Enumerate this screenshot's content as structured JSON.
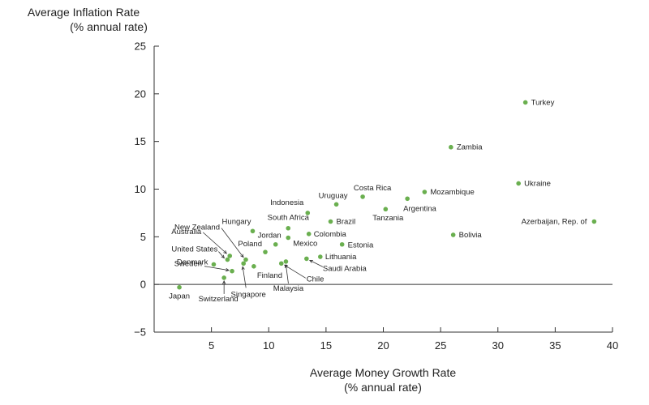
{
  "chart_data": {
    "type": "scatter",
    "title": "",
    "ylabel_line1": "Average Inflation Rate",
    "ylabel_line2": "(% annual rate)",
    "xlabel_line1": "Average Money Growth Rate",
    "xlabel_line2": "(% annual rate)",
    "xlim": [
      0,
      40
    ],
    "ylim": [
      -5,
      25
    ],
    "xticks": [
      5,
      10,
      15,
      20,
      25,
      30,
      35,
      40
    ],
    "yticks": [
      25,
      20,
      15,
      10,
      5,
      0,
      -5
    ],
    "points": [
      {
        "label": "Japan",
        "x": 2.2,
        "y": -0.3
      },
      {
        "label": "Switzerland",
        "x": 6.1,
        "y": 0.7
      },
      {
        "label": "Sweden",
        "x": 6.8,
        "y": 1.4
      },
      {
        "label": "Denmark",
        "x": 5.2,
        "y": 2.1
      },
      {
        "label": "United States",
        "x": 6.4,
        "y": 2.6
      },
      {
        "label": "Australia",
        "x": 6.6,
        "y": 3.0
      },
      {
        "label": "New Zealand",
        "x": 8.0,
        "y": 2.6
      },
      {
        "label": "Singapore",
        "x": 7.8,
        "y": 2.2
      },
      {
        "label": "Finland",
        "x": 8.7,
        "y": 1.9
      },
      {
        "label": "Poland",
        "x": 9.7,
        "y": 3.4
      },
      {
        "label": "Hungary",
        "x": 8.6,
        "y": 5.6
      },
      {
        "label": "Jordan",
        "x": 10.6,
        "y": 4.2
      },
      {
        "label": "South Africa",
        "x": 11.7,
        "y": 5.9
      },
      {
        "label": "Mexico",
        "x": 11.7,
        "y": 4.9
      },
      {
        "label": "Malaysia",
        "x": 11.5,
        "y": 2.4
      },
      {
        "label": "Chile",
        "x": 11.1,
        "y": 2.2
      },
      {
        "label": "Indonesia",
        "x": 13.4,
        "y": 7.5
      },
      {
        "label": "Colombia",
        "x": 13.5,
        "y": 5.3
      },
      {
        "label": "Saudi Arabia",
        "x": 13.3,
        "y": 2.7
      },
      {
        "label": "Lithuania",
        "x": 14.5,
        "y": 2.9
      },
      {
        "label": "Uruguay",
        "x": 15.9,
        "y": 8.4
      },
      {
        "label": "Brazil",
        "x": 15.4,
        "y": 6.6
      },
      {
        "label": "Estonia",
        "x": 16.4,
        "y": 4.2
      },
      {
        "label": "Costa Rica",
        "x": 18.2,
        "y": 9.2
      },
      {
        "label": "Tanzania",
        "x": 20.2,
        "y": 7.9
      },
      {
        "label": "Argentina",
        "x": 22.1,
        "y": 9.0
      },
      {
        "label": "Mozambique",
        "x": 23.6,
        "y": 9.7
      },
      {
        "label": "Zambia",
        "x": 25.9,
        "y": 14.4
      },
      {
        "label": "Bolivia",
        "x": 26.1,
        "y": 5.2
      },
      {
        "label": "Ukraine",
        "x": 31.8,
        "y": 10.6
      },
      {
        "label": "Turkey",
        "x": 32.4,
        "y": 19.1
      },
      {
        "label": "Azerbaijan, Rep. of",
        "x": 38.4,
        "y": 6.6
      }
    ]
  },
  "colors": {
    "point": "#6aaf4f",
    "axis": "#333333",
    "text": "#222222",
    "leader": "#333333"
  }
}
